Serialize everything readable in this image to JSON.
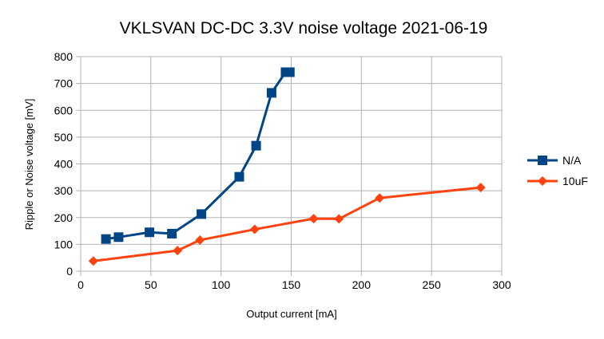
{
  "chart_data": {
    "type": "line",
    "title": "VKLSVAN DC-DC 3.3V noise voltage 2021-06-19",
    "xlabel": "Output current [mA]",
    "ylabel": "Ripple or Noise voltage [mV]",
    "xlim": [
      0,
      300
    ],
    "ylim": [
      0,
      800
    ],
    "xticks": [
      "0",
      "50",
      "100",
      "150",
      "200",
      "250",
      "300"
    ],
    "yticks": [
      "0",
      "100",
      "200",
      "300",
      "400",
      "500",
      "600",
      "700",
      "800"
    ],
    "grid": true,
    "legend_position": "right",
    "series": [
      {
        "name": "N/A",
        "color": "#004586",
        "marker": "square",
        "points": [
          {
            "x": 18,
            "y": 120
          },
          {
            "x": 27,
            "y": 127
          },
          {
            "x": 49,
            "y": 145
          },
          {
            "x": 65,
            "y": 140
          },
          {
            "x": 86,
            "y": 213
          },
          {
            "x": 113,
            "y": 352
          },
          {
            "x": 125,
            "y": 468
          },
          {
            "x": 136,
            "y": 665
          },
          {
            "x": 146,
            "y": 742
          },
          {
            "x": 149,
            "y": 742
          }
        ]
      },
      {
        "name": "10uF",
        "color": "#ff420e",
        "marker": "diamond",
        "points": [
          {
            "x": 9,
            "y": 38
          },
          {
            "x": 69,
            "y": 77
          },
          {
            "x": 85,
            "y": 116
          },
          {
            "x": 124,
            "y": 156
          },
          {
            "x": 166,
            "y": 196
          },
          {
            "x": 184,
            "y": 195
          },
          {
            "x": 213,
            "y": 273
          },
          {
            "x": 285,
            "y": 312
          }
        ]
      }
    ]
  }
}
